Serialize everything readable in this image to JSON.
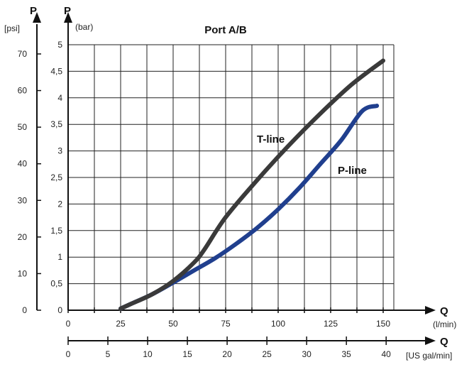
{
  "chart_data": {
    "type": "line",
    "title": "Port A/B",
    "y_axis_letter": "P",
    "y_units_psi": "[psi]",
    "y_units_bar": "(bar)",
    "x_axis_letter": "Q",
    "x_units_lmin": "(l/min)",
    "x_units_gal": "[US gal/min]",
    "ylim_bar": [
      0,
      5
    ],
    "yticks_bar": [
      "0",
      "0,5",
      "1",
      "1,5",
      "2",
      "2,5",
      "3",
      "3,5",
      "4",
      "4,5",
      "5"
    ],
    "yticks_psi": [
      "0",
      "10",
      "20",
      "30",
      "40",
      "50",
      "60",
      "70"
    ],
    "xticks_lmin": [
      "0",
      "25",
      "50",
      "75",
      "100",
      "125",
      "150"
    ],
    "xticks_gal": [
      "0",
      "5",
      "10",
      "15",
      "20",
      "25",
      "30",
      "35",
      "40"
    ],
    "grid": true,
    "series": [
      {
        "name": "T-line",
        "color": "#3a3a3a",
        "points": [
          [
            25,
            0.03
          ],
          [
            30,
            0.12
          ],
          [
            40,
            0.3
          ],
          [
            50,
            0.55
          ],
          [
            60,
            0.9
          ],
          [
            65,
            1.15
          ],
          [
            75,
            1.75
          ],
          [
            90,
            2.45
          ],
          [
            105,
            3.1
          ],
          [
            120,
            3.7
          ],
          [
            135,
            4.25
          ],
          [
            150,
            4.7
          ]
        ]
      },
      {
        "name": "P-line",
        "color": "#203f8e",
        "points": [
          [
            25,
            0.03
          ],
          [
            30,
            0.12
          ],
          [
            40,
            0.3
          ],
          [
            50,
            0.52
          ],
          [
            60,
            0.75
          ],
          [
            70,
            0.98
          ],
          [
            80,
            1.25
          ],
          [
            90,
            1.55
          ],
          [
            100,
            1.9
          ],
          [
            110,
            2.3
          ],
          [
            120,
            2.75
          ],
          [
            130,
            3.2
          ],
          [
            140,
            3.75
          ],
          [
            147,
            3.85
          ]
        ]
      }
    ]
  }
}
